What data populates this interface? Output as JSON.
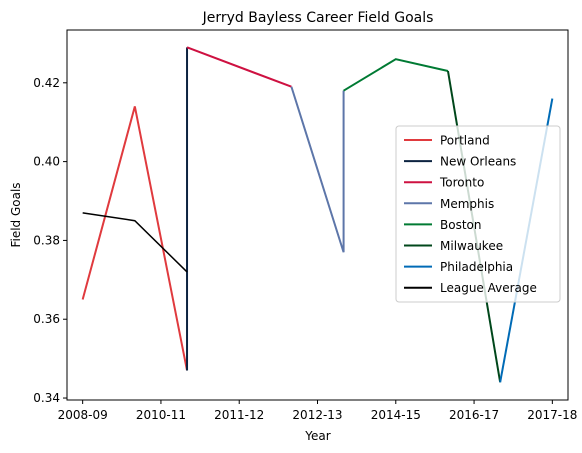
{
  "chart_data": {
    "type": "line",
    "title": "Jerryd Bayless Career Field Goals",
    "xlabel": "Year",
    "ylabel": "Field Goals",
    "x_ticks": [
      "2008-09",
      "2010-11",
      "2011-12",
      "2012-13",
      "2014-15",
      "2016-17",
      "2017-18"
    ],
    "y_ticks": [
      "0.34",
      "0.36",
      "0.38",
      "0.40",
      "0.42"
    ],
    "xlim": [
      -0.3,
      9.3
    ],
    "ylim": [
      0.3395,
      0.4334
    ],
    "legend_position": "center-right",
    "series": [
      {
        "name": "Portland",
        "color": "#e03a3e",
        "points": [
          [
            0,
            0.365
          ],
          [
            1,
            0.414
          ],
          [
            2,
            0.347
          ]
        ]
      },
      {
        "name": "New Orleans",
        "color": "#0c2340",
        "points": [
          [
            2,
            0.347
          ],
          [
            2,
            0.429
          ]
        ]
      },
      {
        "name": "Toronto",
        "color": "#ce1141",
        "points": [
          [
            2,
            0.429
          ],
          [
            4,
            0.419
          ]
        ]
      },
      {
        "name": "Memphis",
        "color": "#5d76a9",
        "points": [
          [
            4,
            0.419
          ],
          [
            5,
            0.377
          ],
          [
            5,
            0.418
          ]
        ]
      },
      {
        "name": "Boston",
        "color": "#007a33",
        "points": [
          [
            5,
            0.418
          ],
          [
            6,
            0.426
          ],
          [
            7,
            0.423
          ]
        ]
      },
      {
        "name": "Milwaukee",
        "color": "#00471b",
        "points": [
          [
            7,
            0.423
          ],
          [
            8,
            0.344
          ]
        ]
      },
      {
        "name": "Philadelphia",
        "color": "#006bb6",
        "points": [
          [
            8,
            0.344
          ],
          [
            9,
            0.416
          ]
        ]
      },
      {
        "name": "League Average",
        "color": "#000000",
        "points": [
          [
            0,
            0.387
          ],
          [
            1,
            0.385
          ],
          [
            2,
            0.372
          ]
        ]
      }
    ]
  }
}
